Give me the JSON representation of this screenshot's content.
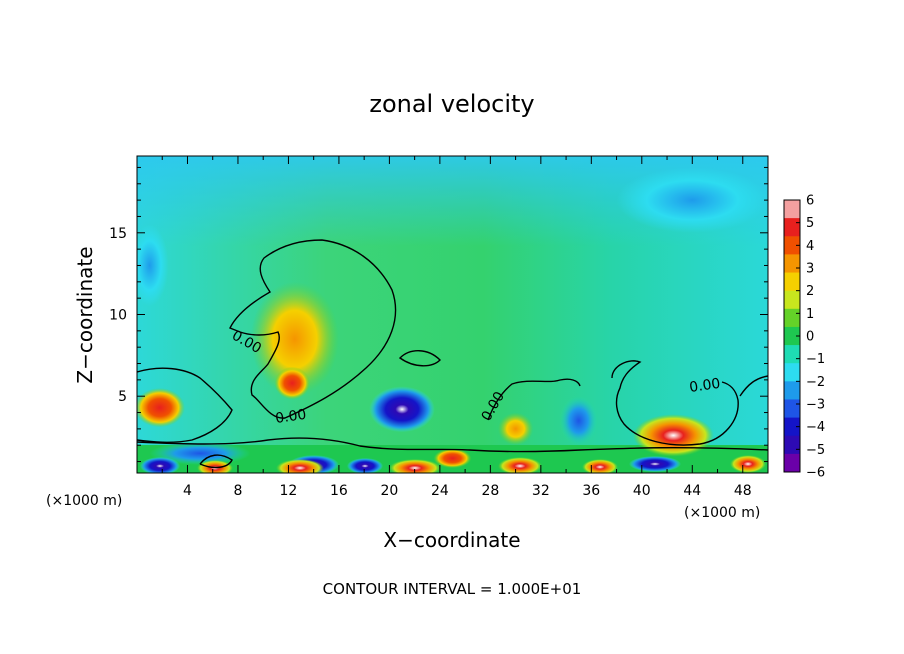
{
  "chart_data": {
    "type": "heatmap",
    "title": "zonal velocity",
    "xlabel": "X−coordinate",
    "ylabel": "Z−coordinate",
    "x_unit": "(×1000 m)",
    "x_unit_right": "(×1000 m)",
    "xlim": [
      0,
      50
    ],
    "ylim": [
      0.3,
      19.7
    ],
    "x_ticks": [
      4,
      8,
      12,
      16,
      20,
      24,
      28,
      32,
      36,
      40,
      44,
      48
    ],
    "y_ticks": [
      5,
      10,
      15
    ],
    "footnote": "CONTOUR INTERVAL = 1.000E+01",
    "colorbar": {
      "ticks": [
        "6",
        "5",
        "4",
        "3",
        "2",
        "1",
        "0",
        "−1",
        "−2",
        "−3",
        "−4",
        "−5",
        "−6"
      ],
      "colors": [
        "#f4a0a0",
        "#e8201e",
        "#f05000",
        "#f59500",
        "#f5d000",
        "#c8e61e",
        "#64d228",
        "#1ec850",
        "#1edcb4",
        "#2ddcf0",
        "#1e9beb",
        "#1e55e6",
        "#1414c8",
        "#2d0ab4",
        "#6a00a8"
      ]
    },
    "contour_level": 0,
    "contour_labels": [
      "0.00",
      "0.00",
      "0.00",
      "0.00"
    ],
    "anomalies": [
      {
        "x": 12.5,
        "z": 8.5,
        "value": 3,
        "rx": 3.5,
        "rz": 3.5
      },
      {
        "x": 12.3,
        "z": 5.8,
        "value": 4,
        "rx": 1.4,
        "rz": 1.0
      },
      {
        "x": 1.8,
        "z": 4.3,
        "value": 4,
        "rx": 2.0,
        "rz": 1.2
      },
      {
        "x": 21.0,
        "z": 4.2,
        "value": -5,
        "rx": 2.6,
        "rz": 1.4
      },
      {
        "x": 42.5,
        "z": 2.6,
        "value": 5,
        "rx": 3.2,
        "rz": 1.3
      },
      {
        "x": 30.0,
        "z": 3.0,
        "value": 3,
        "rx": 1.4,
        "rz": 1.0
      },
      {
        "x": 25.0,
        "z": 1.2,
        "value": 4,
        "rx": 1.5,
        "rz": 0.6
      },
      {
        "x": 5.0,
        "z": 1.5,
        "value": -3,
        "rx": 4.0,
        "rz": 0.7
      },
      {
        "x": 14.0,
        "z": 0.8,
        "value": -5,
        "rx": 2.0,
        "rz": 0.6
      },
      {
        "x": 35.0,
        "z": 3.5,
        "value": -3,
        "rx": 1.5,
        "rz": 1.5
      },
      {
        "x": 44.0,
        "z": 17.0,
        "value": -3,
        "rx": 6.0,
        "rz": 2.0
      },
      {
        "x": 1.0,
        "z": 13.0,
        "value": -3,
        "rx": 1.5,
        "rz": 2.5
      }
    ],
    "grid": false,
    "legend_position": "right"
  }
}
